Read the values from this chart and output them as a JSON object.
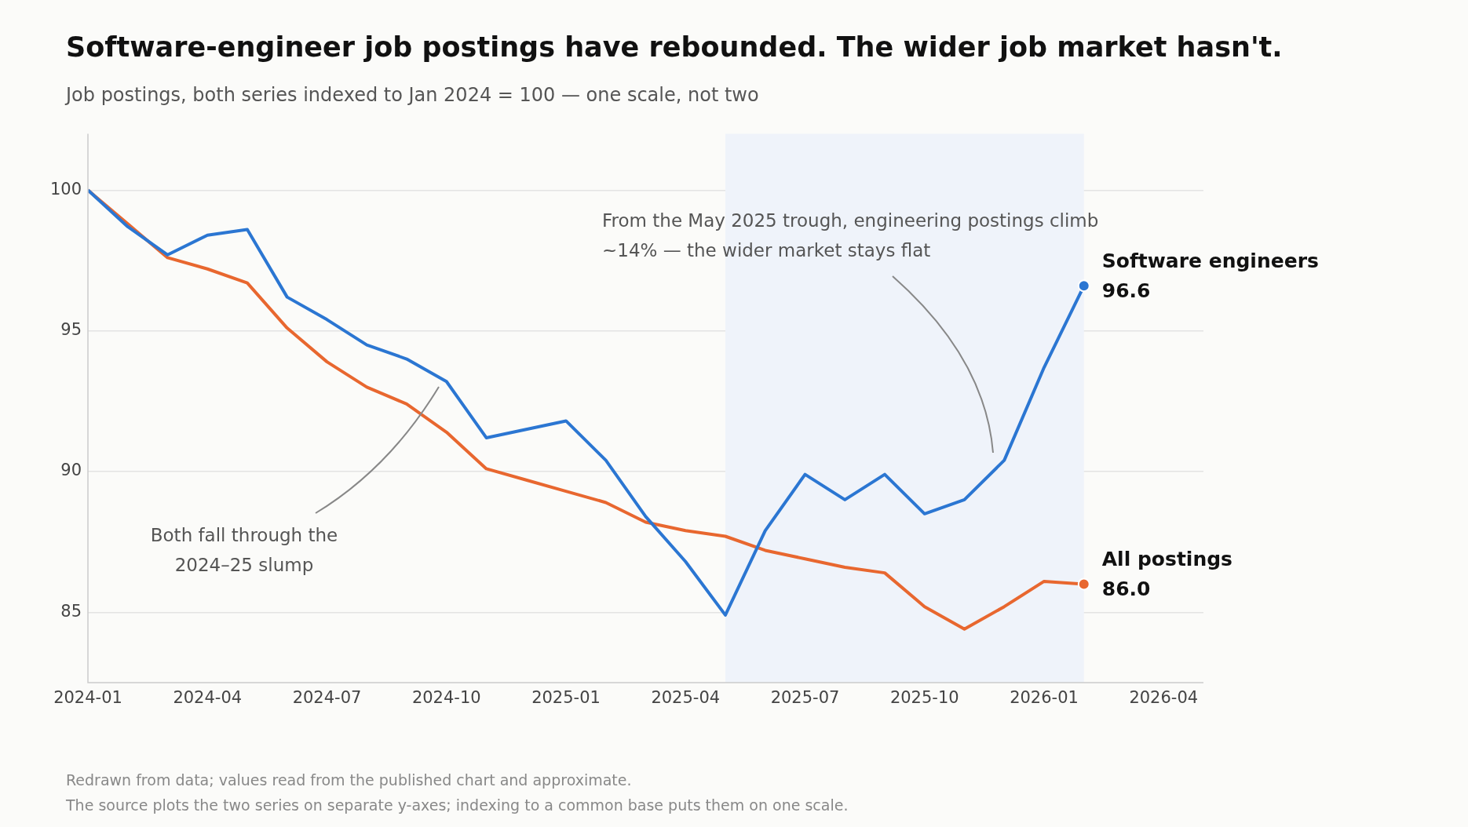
{
  "chart_data": {
    "type": "line",
    "title": "Software-engineer job postings have rebounded. The wider job market hasn't.",
    "subtitle": "Job postings, both series indexed to Jan 2024 = 100 — one scale, not two",
    "x": [
      "2024-01",
      "2024-02",
      "2024-03",
      "2024-04",
      "2024-05",
      "2024-06",
      "2024-07",
      "2024-08",
      "2024-09",
      "2024-10",
      "2024-11",
      "2024-12",
      "2025-01",
      "2025-02",
      "2025-03",
      "2025-04",
      "2025-05",
      "2025-06",
      "2025-07",
      "2025-08",
      "2025-09",
      "2025-10",
      "2025-11",
      "2025-12",
      "2026-01",
      "2026-02"
    ],
    "series": [
      {
        "name": "Software engineers",
        "color": "#2b76d2",
        "values": [
          100,
          98.7,
          97.7,
          98.4,
          98.6,
          96.2,
          95.4,
          94.5,
          94.0,
          93.2,
          91.2,
          91.5,
          91.8,
          90.4,
          88.4,
          86.8,
          84.9,
          87.9,
          89.9,
          89.0,
          89.9,
          88.5,
          89.0,
          90.4,
          93.7,
          96.6
        ],
        "value_labels": [
          null,
          null,
          null,
          null,
          null,
          null,
          null,
          null,
          null,
          null,
          null,
          null,
          null,
          null,
          null,
          null,
          null,
          null,
          null,
          null,
          null,
          null,
          null,
          null,
          null,
          "96.6"
        ]
      },
      {
        "name": "All postings",
        "color": "#e8672f",
        "values": [
          100,
          98.8,
          97.6,
          97.2,
          96.7,
          95.1,
          93.9,
          93.0,
          92.4,
          91.4,
          90.1,
          89.7,
          89.3,
          88.9,
          88.2,
          87.9,
          87.7,
          87.2,
          86.9,
          86.6,
          86.4,
          85.2,
          84.4,
          85.2,
          86.1,
          86.0
        ],
        "value_labels": [
          null,
          null,
          null,
          null,
          null,
          null,
          null,
          null,
          null,
          null,
          null,
          null,
          null,
          null,
          null,
          null,
          null,
          null,
          null,
          null,
          null,
          null,
          null,
          null,
          null,
          "86.0"
        ]
      }
    ],
    "xlim": [
      "2024-01",
      "2026-05"
    ],
    "xticks": [
      "2024-01",
      "2024-04",
      "2024-07",
      "2024-10",
      "2025-01",
      "2025-04",
      "2025-07",
      "2025-10",
      "2026-01",
      "2026-04"
    ],
    "ylim": [
      82.5,
      102
    ],
    "yticks": [
      85,
      90,
      95,
      100
    ],
    "grid": "y",
    "legend": false,
    "marker": "none",
    "line_style": "solid",
    "bands": [
      {
        "axis": "x",
        "from": "2025-05",
        "to": "2026-02",
        "color": "#eff3fa"
      }
    ],
    "annotations": [
      "From the May 2025 trough, engineering postings climb ~14% — the wider market stays flat",
      "Both fall through the 2024–25 slump",
      "Redrawn from data; values read from the published chart and approximate.",
      "The source plots the two series on separate y-axes; indexing to a common base puts them on one scale."
    ]
  }
}
